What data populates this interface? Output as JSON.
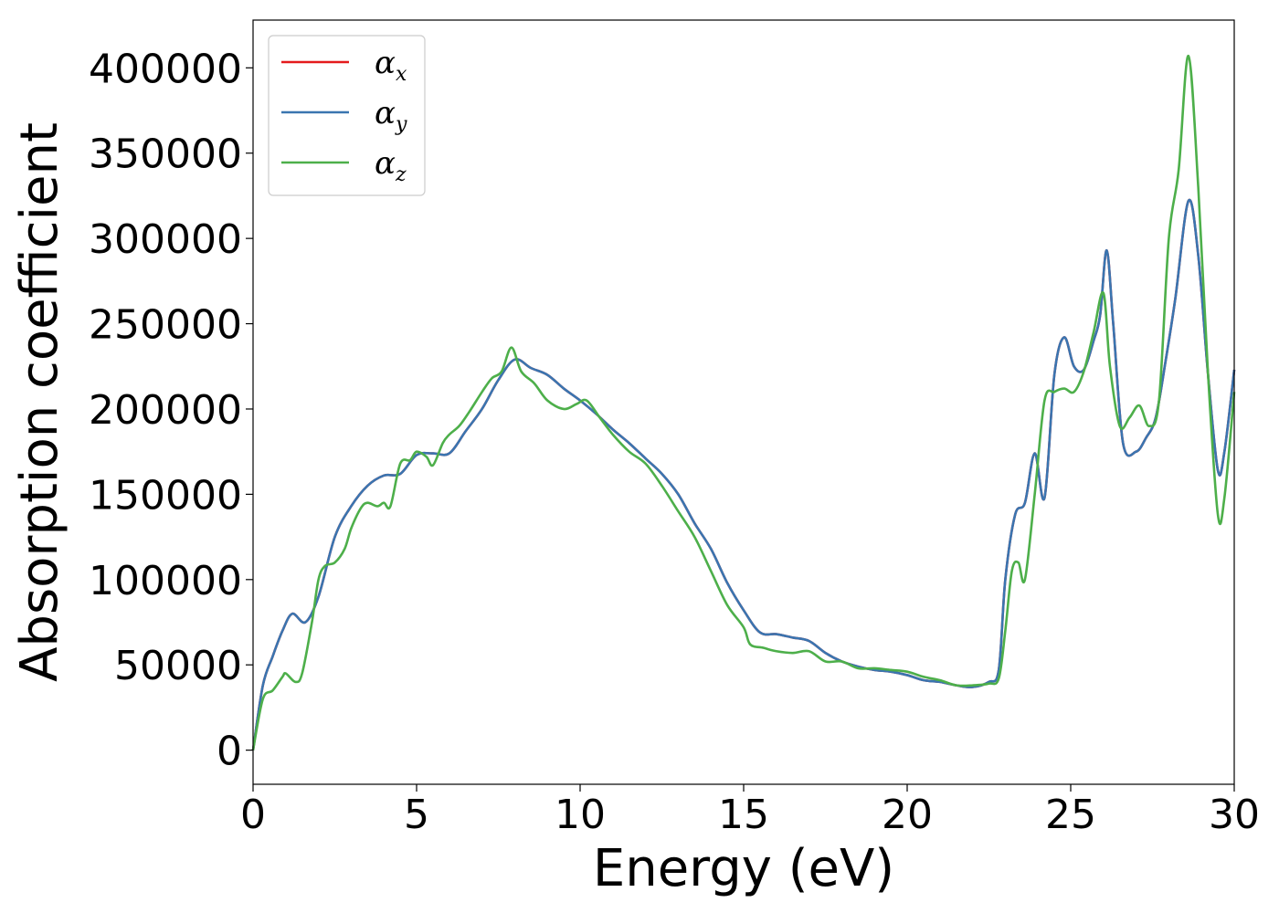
{
  "chart_data": {
    "type": "line",
    "title": "",
    "xlabel": "Energy (eV)",
    "ylabel": "Absorption coefficient",
    "xlim": [
      0,
      30
    ],
    "ylim": [
      -20000,
      428000
    ],
    "xticks": [
      0,
      5,
      10,
      15,
      20,
      25,
      30
    ],
    "yticks": [
      0,
      50000,
      100000,
      150000,
      200000,
      250000,
      300000,
      350000,
      400000
    ],
    "grid": false,
    "legend_position": "top-left",
    "series": [
      {
        "name": "α",
        "sub": "x",
        "color": "#e41a1c",
        "x": [
          0,
          0.3,
          0.6,
          0.9,
          1.2,
          1.6,
          2.0,
          2.5,
          3.0,
          3.5,
          4.0,
          4.5,
          5.0,
          5.5,
          6.0,
          6.5,
          7.0,
          7.5,
          8.0,
          8.5,
          9.0,
          9.5,
          10.0,
          10.5,
          11.0,
          11.5,
          12.0,
          12.5,
          13.0,
          13.5,
          14.0,
          14.5,
          15.0,
          15.5,
          16.0,
          16.5,
          17.0,
          17.5,
          18.0,
          18.5,
          19.0,
          19.5,
          20.0,
          20.5,
          21.0,
          21.5,
          22.0,
          22.5,
          22.8,
          23.0,
          23.3,
          23.6,
          23.9,
          24.2,
          24.5,
          24.8,
          25.1,
          25.4,
          25.7,
          25.9,
          26.1,
          26.3,
          26.6,
          27.0,
          27.3,
          27.6,
          27.9,
          28.2,
          28.6,
          28.9,
          29.2,
          29.5,
          29.7,
          30.0
        ],
        "y": [
          0,
          38000,
          55000,
          70000,
          80000,
          75000,
          90000,
          125000,
          143000,
          155000,
          161000,
          162000,
          173000,
          174000,
          174000,
          187000,
          200000,
          217000,
          229000,
          224000,
          220000,
          212000,
          205000,
          197000,
          188000,
          180000,
          171000,
          162000,
          150000,
          133000,
          118000,
          98000,
          82000,
          69000,
          68000,
          66000,
          64000,
          57000,
          52000,
          49000,
          47000,
          46000,
          44000,
          41000,
          40000,
          38000,
          37000,
          40000,
          47000,
          100000,
          138000,
          145000,
          174000,
          148000,
          220000,
          242000,
          225000,
          223000,
          240000,
          255000,
          293000,
          250000,
          180000,
          175000,
          183000,
          195000,
          228000,
          265000,
          322000,
          290000,
          220000,
          164000,
          175000,
          223000
        ]
      },
      {
        "name": "α",
        "sub": "y",
        "color": "#3a75b0",
        "x": [
          0,
          0.3,
          0.6,
          0.9,
          1.2,
          1.6,
          2.0,
          2.5,
          3.0,
          3.5,
          4.0,
          4.5,
          5.0,
          5.5,
          6.0,
          6.5,
          7.0,
          7.5,
          8.0,
          8.5,
          9.0,
          9.5,
          10.0,
          10.5,
          11.0,
          11.5,
          12.0,
          12.5,
          13.0,
          13.5,
          14.0,
          14.5,
          15.0,
          15.5,
          16.0,
          16.5,
          17.0,
          17.5,
          18.0,
          18.5,
          19.0,
          19.5,
          20.0,
          20.5,
          21.0,
          21.5,
          22.0,
          22.5,
          22.8,
          23.0,
          23.3,
          23.6,
          23.9,
          24.2,
          24.5,
          24.8,
          25.1,
          25.4,
          25.7,
          25.9,
          26.1,
          26.3,
          26.6,
          27.0,
          27.3,
          27.6,
          27.9,
          28.2,
          28.6,
          28.9,
          29.2,
          29.5,
          29.7,
          30.0
        ],
        "y": [
          0,
          38000,
          55000,
          70000,
          80000,
          75000,
          90000,
          125000,
          143000,
          155000,
          161000,
          162000,
          173000,
          174000,
          174000,
          187000,
          200000,
          217000,
          229000,
          224000,
          220000,
          212000,
          205000,
          197000,
          188000,
          180000,
          171000,
          162000,
          150000,
          133000,
          118000,
          98000,
          82000,
          69000,
          68000,
          66000,
          64000,
          57000,
          52000,
          49000,
          47000,
          46000,
          44000,
          41000,
          40000,
          38000,
          37000,
          40000,
          47000,
          100000,
          138000,
          145000,
          174000,
          148000,
          220000,
          242000,
          225000,
          223000,
          240000,
          255000,
          293000,
          250000,
          180000,
          175000,
          183000,
          195000,
          228000,
          265000,
          322000,
          290000,
          220000,
          164000,
          175000,
          223000
        ]
      },
      {
        "name": "α",
        "sub": "z",
        "color": "#4daf4a",
        "x": [
          0,
          0.3,
          0.6,
          0.9,
          1.0,
          1.3,
          1.5,
          1.8,
          2.0,
          2.2,
          2.5,
          2.8,
          3.0,
          3.3,
          3.5,
          3.8,
          4.0,
          4.2,
          4.5,
          4.8,
          5.0,
          5.3,
          5.5,
          5.8,
          6.0,
          6.3,
          6.6,
          7.0,
          7.3,
          7.6,
          7.9,
          8.2,
          8.6,
          9.0,
          9.5,
          9.9,
          10.2,
          10.6,
          11.0,
          11.5,
          12.0,
          12.5,
          13.0,
          13.5,
          14.0,
          14.5,
          15.0,
          15.2,
          15.6,
          16.0,
          16.5,
          17.0,
          17.5,
          18.0,
          18.5,
          19.0,
          19.5,
          20.0,
          20.5,
          21.0,
          21.5,
          22.0,
          22.5,
          22.8,
          23.0,
          23.2,
          23.4,
          23.6,
          23.9,
          24.2,
          24.5,
          24.8,
          25.1,
          25.4,
          25.7,
          26.0,
          26.2,
          26.5,
          26.8,
          27.1,
          27.4,
          27.7,
          28.0,
          28.3,
          28.6,
          28.9,
          29.2,
          29.5,
          29.7,
          30.0
        ],
        "y": [
          0,
          30000,
          35000,
          43000,
          45000,
          40000,
          45000,
          75000,
          100000,
          108000,
          110000,
          118000,
          130000,
          142000,
          145000,
          143000,
          145000,
          143000,
          168000,
          170000,
          175000,
          172000,
          167000,
          180000,
          185000,
          190000,
          198000,
          210000,
          218000,
          222000,
          236000,
          222000,
          215000,
          205000,
          200000,
          203000,
          205000,
          195000,
          185000,
          175000,
          168000,
          155000,
          140000,
          125000,
          105000,
          85000,
          72000,
          62000,
          60000,
          58000,
          57000,
          58000,
          52000,
          52000,
          48000,
          48000,
          47000,
          46000,
          43000,
          41000,
          38000,
          38000,
          39000,
          42000,
          70000,
          105000,
          110000,
          100000,
          150000,
          205000,
          210000,
          212000,
          210000,
          222000,
          245000,
          268000,
          225000,
          190000,
          195000,
          202000,
          190000,
          205000,
          300000,
          340000,
          407000,
          330000,
          220000,
          138000,
          148000,
          210000
        ]
      }
    ]
  }
}
